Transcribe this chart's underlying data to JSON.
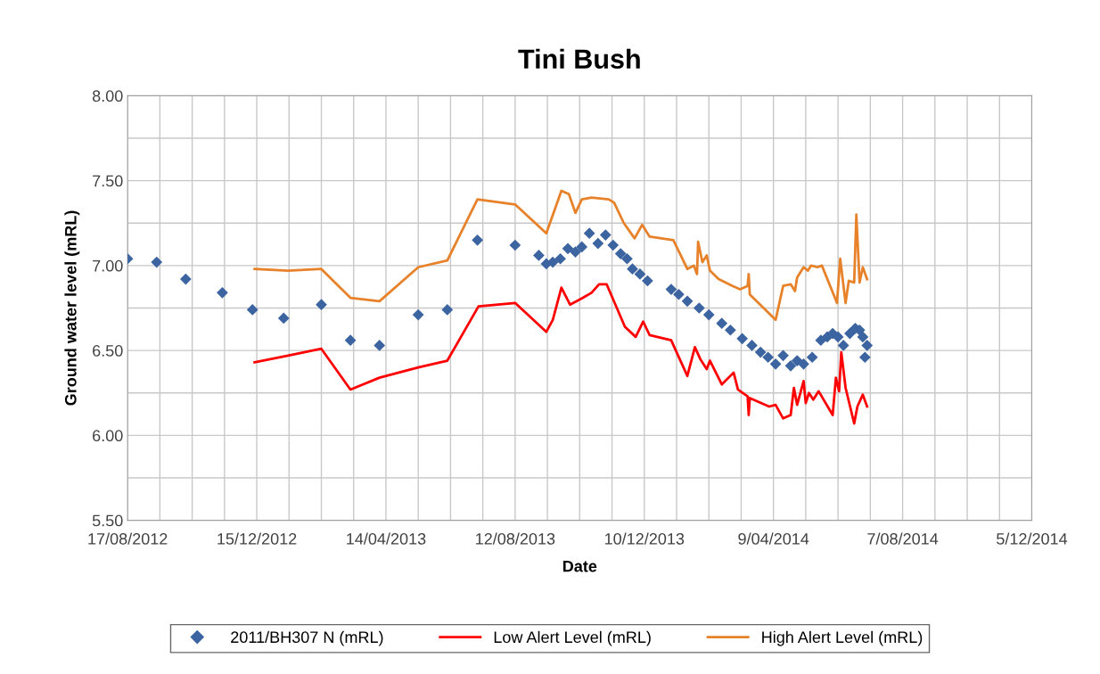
{
  "chart_data": {
    "type": "line",
    "title": "Tini Bush",
    "xlabel": "Date",
    "ylabel": "Ground water level (mRL)",
    "xlim": [
      "2012-08-17",
      "2014-12-05"
    ],
    "xticks": [
      {
        "value": "2012-08-17",
        "label": "17/08/2012"
      },
      {
        "value": "2012-09-16",
        "label": null
      },
      {
        "value": "2012-10-16",
        "label": null
      },
      {
        "value": "2012-11-15",
        "label": null
      },
      {
        "value": "2012-12-15",
        "label": "15/12/2012"
      },
      {
        "value": "2013-01-14",
        "label": null
      },
      {
        "value": "2013-02-13",
        "label": null
      },
      {
        "value": "2013-03-15",
        "label": null
      },
      {
        "value": "2013-04-14",
        "label": "14/04/2013"
      },
      {
        "value": "2013-05-14",
        "label": null
      },
      {
        "value": "2013-06-13",
        "label": null
      },
      {
        "value": "2013-07-13",
        "label": null
      },
      {
        "value": "2013-08-12",
        "label": "12/08/2013"
      },
      {
        "value": "2013-09-11",
        "label": null
      },
      {
        "value": "2013-10-11",
        "label": null
      },
      {
        "value": "2013-11-10",
        "label": null
      },
      {
        "value": "2013-12-10",
        "label": "10/12/2013"
      },
      {
        "value": "2014-01-09",
        "label": null
      },
      {
        "value": "2014-02-08",
        "label": null
      },
      {
        "value": "2014-03-10",
        "label": null
      },
      {
        "value": "2014-04-09",
        "label": "9/04/2014"
      },
      {
        "value": "2014-05-09",
        "label": null
      },
      {
        "value": "2014-06-08",
        "label": null
      },
      {
        "value": "2014-07-08",
        "label": null
      },
      {
        "value": "2014-08-07",
        "label": "7/08/2014"
      },
      {
        "value": "2014-09-06",
        "label": null
      },
      {
        "value": "2014-10-06",
        "label": null
      },
      {
        "value": "2014-11-05",
        "label": null
      },
      {
        "value": "2014-12-05",
        "label": "5/12/2014"
      }
    ],
    "ylim": [
      5.5,
      8.0
    ],
    "yticks": [
      {
        "value": 5.5,
        "label": "5.50"
      },
      {
        "value": 5.75,
        "label": null
      },
      {
        "value": 6.0,
        "label": "6.00"
      },
      {
        "value": 6.25,
        "label": null
      },
      {
        "value": 6.5,
        "label": "6.50"
      },
      {
        "value": 6.75,
        "label": null
      },
      {
        "value": 7.0,
        "label": "7.00"
      },
      {
        "value": 7.25,
        "label": null
      },
      {
        "value": 7.5,
        "label": "7.50"
      },
      {
        "value": 7.75,
        "label": null
      },
      {
        "value": 8.0,
        "label": "8.00"
      }
    ],
    "grid": true,
    "legend": "bottom",
    "series": [
      {
        "name": "2011/BH307 N (mRL)",
        "type": "scatter",
        "marker": "diamond",
        "color": "#3b64a0",
        "x": [
          "2012-08-17",
          "2012-09-13",
          "2012-10-10",
          "2012-11-13",
          "2012-12-11",
          "2013-01-09",
          "2013-02-13",
          "2013-03-12",
          "2013-04-08",
          "2013-05-14",
          "2013-06-10",
          "2013-07-08",
          "2013-08-12",
          "2013-09-03",
          "2013-09-10",
          "2013-09-16",
          "2013-09-23",
          "2013-09-30",
          "2013-10-07",
          "2013-10-13",
          "2013-10-20",
          "2013-10-28",
          "2013-11-04",
          "2013-11-11",
          "2013-11-18",
          "2013-11-24",
          "2013-11-29",
          "2013-12-06",
          "2013-12-13",
          "2014-01-04",
          "2014-01-11",
          "2014-01-19",
          "2014-01-30",
          "2014-02-08",
          "2014-02-20",
          "2014-02-28",
          "2014-03-11",
          "2014-03-20",
          "2014-03-28",
          "2014-04-04",
          "2014-04-11",
          "2014-04-18",
          "2014-04-25",
          "2014-05-01",
          "2014-05-07",
          "2014-05-15",
          "2014-05-23",
          "2014-05-29",
          "2014-06-03",
          "2014-06-08",
          "2014-06-13",
          "2014-06-19",
          "2014-06-24",
          "2014-06-28",
          "2014-07-01",
          "2014-07-03",
          "2014-07-05"
        ],
        "values": [
          7.04,
          7.02,
          6.92,
          6.84,
          6.74,
          6.69,
          6.77,
          6.56,
          6.53,
          6.71,
          6.74,
          7.15,
          7.12,
          7.06,
          7.01,
          7.02,
          7.04,
          7.1,
          7.08,
          7.11,
          7.19,
          7.13,
          7.18,
          7.12,
          7.07,
          7.04,
          6.98,
          6.95,
          6.91,
          6.86,
          6.83,
          6.79,
          6.75,
          6.71,
          6.66,
          6.62,
          6.57,
          6.53,
          6.49,
          6.46,
          6.42,
          6.47,
          6.41,
          6.44,
          6.42,
          6.46,
          6.56,
          6.58,
          6.6,
          6.58,
          6.53,
          6.6,
          6.63,
          6.62,
          6.58,
          6.46,
          6.53
        ]
      },
      {
        "name": "Low Alert Level (mRL)",
        "color": "#ff0000",
        "x": [
          "2012-12-13",
          "2013-01-13",
          "2013-02-13",
          "2013-03-12",
          "2013-04-08",
          "2013-05-14",
          "2013-06-10",
          "2013-07-09",
          "2013-08-12",
          "2013-09-10",
          "2013-09-16",
          "2013-09-24",
          "2013-10-02",
          "2013-10-14",
          "2013-10-22",
          "2013-10-29",
          "2013-11-05",
          "2013-11-22",
          "2013-12-02",
          "2013-12-09",
          "2013-12-15",
          "2014-01-04",
          "2014-01-19",
          "2014-01-26",
          "2014-01-31",
          "2014-02-06",
          "2014-02-09",
          "2014-02-20",
          "2014-03-03",
          "2014-03-07",
          "2014-03-16",
          "2014-03-17",
          "2014-03-18",
          "2014-04-05",
          "2014-04-11",
          "2014-04-18",
          "2014-04-25",
          "2014-04-28",
          "2014-05-01",
          "2014-05-07",
          "2014-05-09",
          "2014-05-12",
          "2014-05-16",
          "2014-05-21",
          "2014-06-03",
          "2014-06-06",
          "2014-06-09",
          "2014-06-11",
          "2014-06-15",
          "2014-06-23",
          "2014-06-26",
          "2014-07-01",
          "2014-07-05"
        ],
        "values": [
          6.43,
          6.47,
          6.51,
          6.27,
          6.34,
          6.4,
          6.44,
          6.76,
          6.78,
          6.61,
          6.68,
          6.87,
          6.77,
          6.81,
          6.84,
          6.89,
          6.89,
          6.64,
          6.58,
          6.67,
          6.59,
          6.56,
          6.35,
          6.52,
          6.45,
          6.39,
          6.44,
          6.3,
          6.37,
          6.27,
          6.23,
          6.12,
          6.22,
          6.17,
          6.18,
          6.1,
          6.12,
          6.28,
          6.18,
          6.32,
          6.19,
          6.25,
          6.21,
          6.26,
          6.12,
          6.34,
          6.26,
          6.49,
          6.28,
          6.07,
          6.17,
          6.24,
          6.17
        ]
      },
      {
        "name": "High Alert Level (mRL)",
        "color": "#e8822a",
        "x": [
          "2012-12-13",
          "2013-01-13",
          "2013-02-13",
          "2013-03-12",
          "2013-04-08",
          "2013-05-14",
          "2013-06-10",
          "2013-07-08",
          "2013-08-12",
          "2013-09-10",
          "2013-09-24",
          "2013-10-01",
          "2013-10-07",
          "2013-10-13",
          "2013-10-22",
          "2013-11-07",
          "2013-11-12",
          "2013-11-21",
          "2013-12-01",
          "2013-12-08",
          "2013-12-15",
          "2014-01-06",
          "2014-01-19",
          "2014-01-25",
          "2014-01-28",
          "2014-01-29",
          "2014-02-02",
          "2014-02-06",
          "2014-02-09",
          "2014-02-17",
          "2014-03-02",
          "2014-03-09",
          "2014-03-16",
          "2014-03-17",
          "2014-03-18",
          "2014-04-11",
          "2014-04-18",
          "2014-04-25",
          "2014-04-29",
          "2014-05-01",
          "2014-05-07",
          "2014-05-11",
          "2014-05-14",
          "2014-05-20",
          "2014-05-24",
          "2014-06-07",
          "2014-06-10",
          "2014-06-15",
          "2014-06-18",
          "2014-06-23",
          "2014-06-25",
          "2014-06-28",
          "2014-07-01",
          "2014-07-05"
        ],
        "values": [
          6.98,
          6.97,
          6.98,
          6.81,
          6.79,
          6.99,
          7.03,
          7.39,
          7.36,
          7.19,
          7.44,
          7.42,
          7.31,
          7.39,
          7.4,
          7.39,
          7.37,
          7.25,
          7.16,
          7.24,
          7.17,
          7.15,
          6.98,
          7.0,
          6.95,
          7.14,
          7.02,
          7.06,
          6.97,
          6.92,
          6.88,
          6.86,
          6.88,
          6.95,
          6.83,
          6.68,
          6.88,
          6.89,
          6.85,
          6.93,
          6.99,
          6.97,
          7.0,
          6.99,
          7.0,
          6.78,
          7.04,
          6.78,
          6.91,
          6.9,
          7.3,
          6.9,
          6.99,
          6.92
        ]
      }
    ]
  }
}
